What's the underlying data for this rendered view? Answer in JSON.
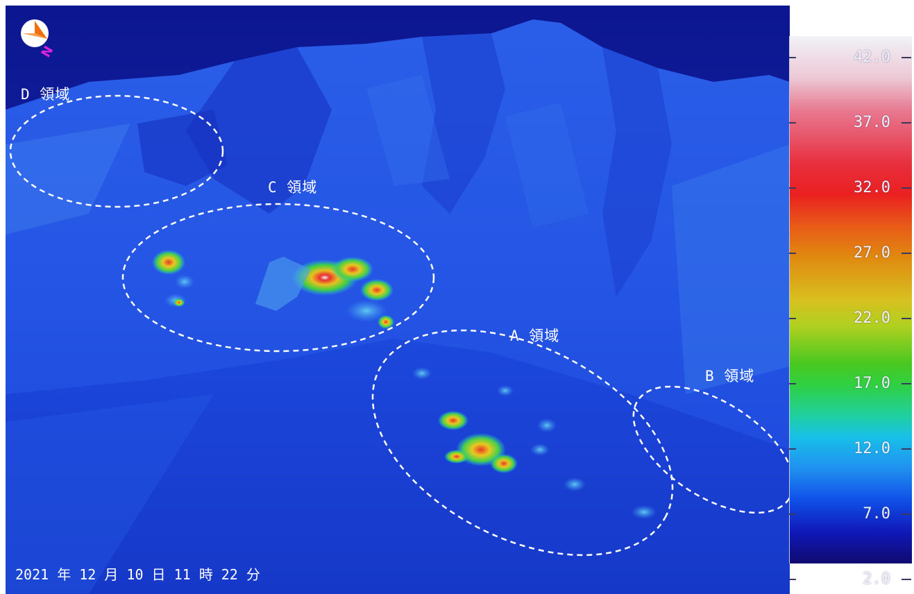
{
  "image": {
    "timestamp": "2021 年 12 月 10 日 11 時 22 分",
    "compass_letter": "N"
  },
  "regions": {
    "a": "A 領域",
    "b": "B 領域",
    "c": "C 領域",
    "d": "D 領域"
  },
  "scale": {
    "labels": [
      "42.0",
      "37.0",
      "32.0",
      "27.0",
      "22.0",
      "17.0",
      "12.0",
      "7.0",
      "2.0"
    ],
    "min": 2.0,
    "max": 42.0
  },
  "colors": {
    "sky": "#0a1a9a",
    "ground": "#1a4ce0",
    "hot": "#e82020",
    "warm": "#e8d020",
    "compass_orange": "#f07010",
    "compass_letter": "#e020e0"
  }
}
